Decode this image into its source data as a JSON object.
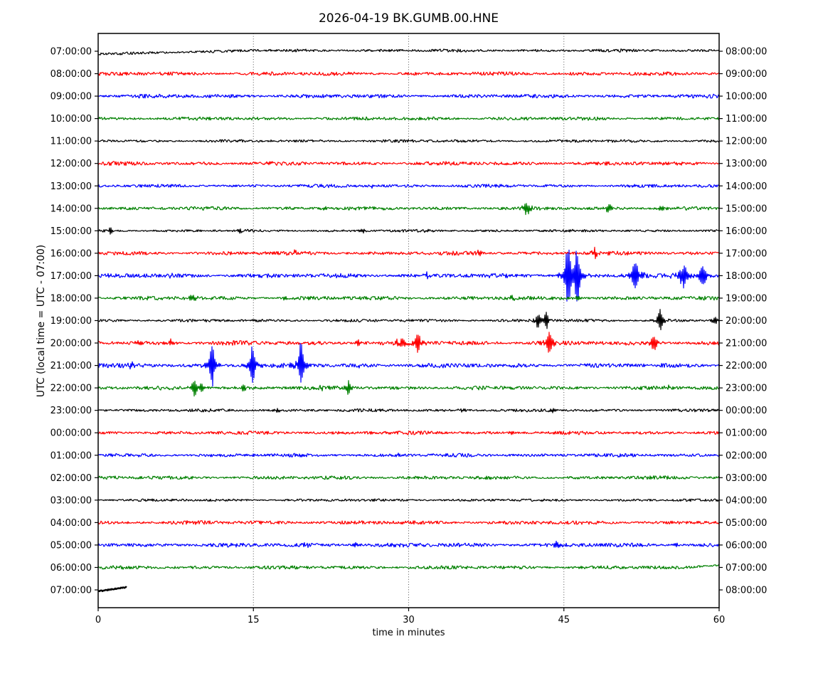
{
  "chart_data": {
    "type": "line",
    "subtype": "helicorder-daily-seismogram",
    "title": "2026-04-19 BK.GUMB.00.HNE",
    "xlabel": "time in minutes",
    "ylabel": "UTC (local time = UTC - 07:00)",
    "xlim": [
      0,
      60
    ],
    "x_ticks": [
      0,
      15,
      30,
      45,
      60
    ],
    "grid_minutes": [
      15,
      30,
      45
    ],
    "grid_style": "dotted-vertical",
    "trace_colors_cycle": [
      "#000000",
      "#ff0000",
      "#0000ff",
      "#008000"
    ],
    "minutes_per_row": 60,
    "rows": [
      {
        "left": "07:00:00",
        "right": "08:00:00",
        "color": "#000000",
        "noise": 1.0,
        "drift": [
          0,
          15,
          4,
          -1
        ],
        "events": []
      },
      {
        "left": "08:00:00",
        "right": "09:00:00",
        "color": "#ff0000",
        "noise": 1.3,
        "events": []
      },
      {
        "left": "09:00:00",
        "right": "10:00:00",
        "color": "#0000ff",
        "noise": 1.3,
        "events": []
      },
      {
        "left": "10:00:00",
        "right": "11:00:00",
        "color": "#008000",
        "noise": 1.2,
        "events": []
      },
      {
        "left": "11:00:00",
        "right": "12:00:00",
        "color": "#000000",
        "noise": 1.0,
        "events": []
      },
      {
        "left": "12:00:00",
        "right": "13:00:00",
        "color": "#ff0000",
        "noise": 1.3,
        "events": []
      },
      {
        "left": "13:00:00",
        "right": "14:00:00",
        "color": "#0000ff",
        "noise": 1.1,
        "events": [
          [
            26.5,
            3,
            1.5
          ]
        ]
      },
      {
        "left": "14:00:00",
        "right": "15:00:00",
        "color": "#008000",
        "noise": 1.2,
        "events": [
          [
            21.8,
            2.5,
            3
          ],
          [
            41.4,
            7,
            5
          ],
          [
            49.3,
            5,
            3.5
          ],
          [
            54.4,
            4.5,
            3
          ]
        ]
      },
      {
        "left": "15:00:00",
        "right": "16:00:00",
        "color": "#000000",
        "noise": 0.9,
        "events": [
          [
            1.2,
            5,
            2
          ],
          [
            13.7,
            3,
            2.5
          ],
          [
            25.6,
            2.5,
            2.5
          ],
          [
            31.8,
            2,
            3
          ]
        ]
      },
      {
        "left": "16:00:00",
        "right": "17:00:00",
        "color": "#ff0000",
        "noise": 1.3,
        "events": [
          [
            19.0,
            3,
            2.5
          ],
          [
            36.8,
            4,
            2.5
          ],
          [
            48.0,
            6,
            3
          ]
        ]
      },
      {
        "left": "17:00:00",
        "right": "18:00:00",
        "color": "#0000ff",
        "noise": 1.5,
        "events": [
          [
            7.0,
            3,
            2
          ],
          [
            31.8,
            3,
            2
          ],
          [
            45.4,
            42,
            3.5
          ],
          [
            46.3,
            35,
            3.5
          ],
          [
            51.9,
            22,
            4
          ],
          [
            56.5,
            14,
            4.5
          ],
          [
            58.4,
            16,
            4
          ]
        ]
      },
      {
        "left": "18:00:00",
        "right": "19:00:00",
        "color": "#008000",
        "noise": 1.3,
        "events": [
          [
            9.1,
            4,
            3.5
          ],
          [
            18.0,
            2.5,
            3
          ],
          [
            40.0,
            3,
            3
          ],
          [
            46.3,
            4,
            2
          ]
        ]
      },
      {
        "left": "19:00:00",
        "right": "20:00:00",
        "color": "#000000",
        "noise": 1.0,
        "events": [
          [
            42.5,
            11,
            2.5
          ],
          [
            43.3,
            12,
            2.5
          ],
          [
            54.3,
            15,
            3
          ],
          [
            59.6,
            6,
            2.5
          ]
        ]
      },
      {
        "left": "20:00:00",
        "right": "21:00:00",
        "color": "#ff0000",
        "noise": 1.5,
        "events": [
          [
            3.8,
            4,
            2.5
          ],
          [
            6.4,
            4,
            2
          ],
          [
            7.0,
            5,
            2
          ],
          [
            25.1,
            4,
            2.5
          ],
          [
            28.8,
            4,
            2.5
          ],
          [
            29.4,
            5,
            2.5
          ],
          [
            30.9,
            16,
            3
          ],
          [
            43.6,
            15,
            3.5
          ],
          [
            53.7,
            14,
            3.5
          ]
        ]
      },
      {
        "left": "21:00:00",
        "right": "22:00:00",
        "color": "#0000ff",
        "noise": 1.5,
        "events": [
          [
            3.2,
            4,
            2
          ],
          [
            11.0,
            30,
            3
          ],
          [
            14.9,
            25,
            3
          ],
          [
            19.6,
            32,
            3
          ],
          [
            25.2,
            2.5,
            2
          ]
        ]
      },
      {
        "left": "22:00:00",
        "right": "23:00:00",
        "color": "#008000",
        "noise": 1.3,
        "events": [
          [
            9.3,
            10,
            3.5
          ],
          [
            10.0,
            5,
            2
          ],
          [
            14.0,
            4,
            3
          ],
          [
            21.6,
            3,
            2
          ],
          [
            24.2,
            9,
            2.5
          ],
          [
            55.1,
            3,
            2.5
          ]
        ]
      },
      {
        "left": "23:00:00",
        "right": "00:00:00",
        "color": "#000000",
        "noise": 1.0,
        "events": [
          [
            17.3,
            2,
            4
          ],
          [
            35.2,
            2,
            4
          ],
          [
            44.0,
            2,
            4
          ]
        ]
      },
      {
        "left": "00:00:00",
        "right": "01:00:00",
        "color": "#ff0000",
        "noise": 1.2,
        "events": [
          [
            26.3,
            2.5,
            3
          ],
          [
            40.0,
            2,
            3
          ]
        ]
      },
      {
        "left": "01:00:00",
        "right": "02:00:00",
        "color": "#0000ff",
        "noise": 1.2,
        "events": [
          [
            29.0,
            2,
            3
          ]
        ]
      },
      {
        "left": "02:00:00",
        "right": "03:00:00",
        "color": "#008000",
        "noise": 1.2,
        "events": []
      },
      {
        "left": "03:00:00",
        "right": "04:00:00",
        "color": "#000000",
        "noise": 0.9,
        "events": []
      },
      {
        "left": "04:00:00",
        "right": "05:00:00",
        "color": "#ff0000",
        "noise": 1.3,
        "events": []
      },
      {
        "left": "05:00:00",
        "right": "06:00:00",
        "color": "#0000ff",
        "noise": 1.4,
        "events": [
          [
            20.1,
            2.5,
            3
          ],
          [
            24.9,
            2,
            3
          ],
          [
            44.3,
            3,
            3
          ],
          [
            55.8,
            2.5,
            3
          ]
        ]
      },
      {
        "left": "06:00:00",
        "right": "07:00:00",
        "color": "#008000",
        "noise": 1.2,
        "drift": [
          56,
          60,
          0,
          -3
        ],
        "events": []
      },
      {
        "left": "07:00:00",
        "right": "08:00:00",
        "color": "#000000",
        "noise": 0.5,
        "end": 2.8,
        "lw": 2.5,
        "drift": [
          0,
          2.8,
          2,
          -4
        ],
        "events": []
      }
    ]
  }
}
